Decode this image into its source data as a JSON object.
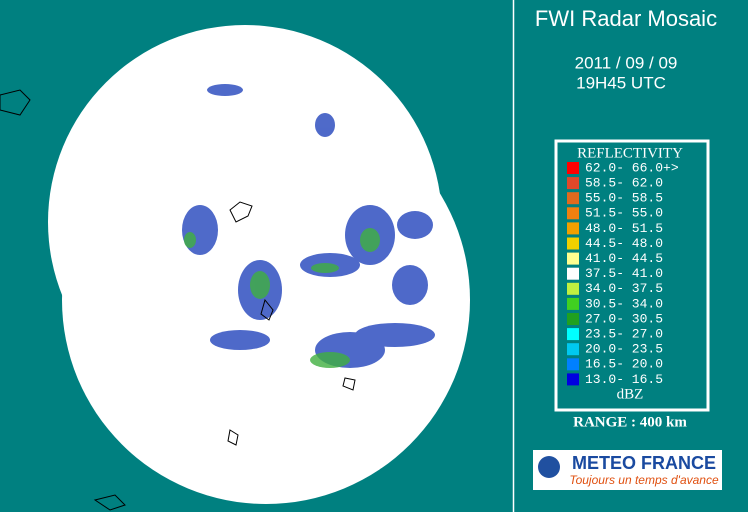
{
  "header": {
    "title": "FWI Radar Mosaic",
    "date": "2011 / 09 / 09",
    "time": "19H45 UTC"
  },
  "legend": {
    "title": "REFLECTIVITY",
    "unit": "dBZ",
    "items": [
      {
        "label": "62.0- 66.0+>",
        "color": "#ff0000"
      },
      {
        "label": "58.5- 62.0",
        "color": "#e0482a"
      },
      {
        "label": "55.0- 58.5",
        "color": "#e06a1e"
      },
      {
        "label": "51.5- 55.0",
        "color": "#f08010"
      },
      {
        "label": "48.0- 51.5",
        "color": "#f0a000"
      },
      {
        "label": "44.5- 48.0",
        "color": "#f0d000"
      },
      {
        "label": "41.0- 44.5",
        "color": "#ffff90"
      },
      {
        "label": "37.5- 41.0",
        "color": "#ffffff"
      },
      {
        "label": "34.0- 37.5",
        "color": "#c0f040"
      },
      {
        "label": "30.5- 34.0",
        "color": "#40d020"
      },
      {
        "label": "27.0- 30.5",
        "color": "#20a020"
      },
      {
        "label": "23.5- 27.0",
        "color": "#00ffff"
      },
      {
        "label": "20.0- 23.5",
        "color": "#00c8f0"
      },
      {
        "label": "16.5- 20.0",
        "color": "#0080ff"
      },
      {
        "label": "13.0- 16.5",
        "color": "#0000e0"
      }
    ]
  },
  "range": "RANGE : 400 km",
  "logo": {
    "name": "METEO FRANCE",
    "tagline": "Toujours un temps d'avance"
  }
}
